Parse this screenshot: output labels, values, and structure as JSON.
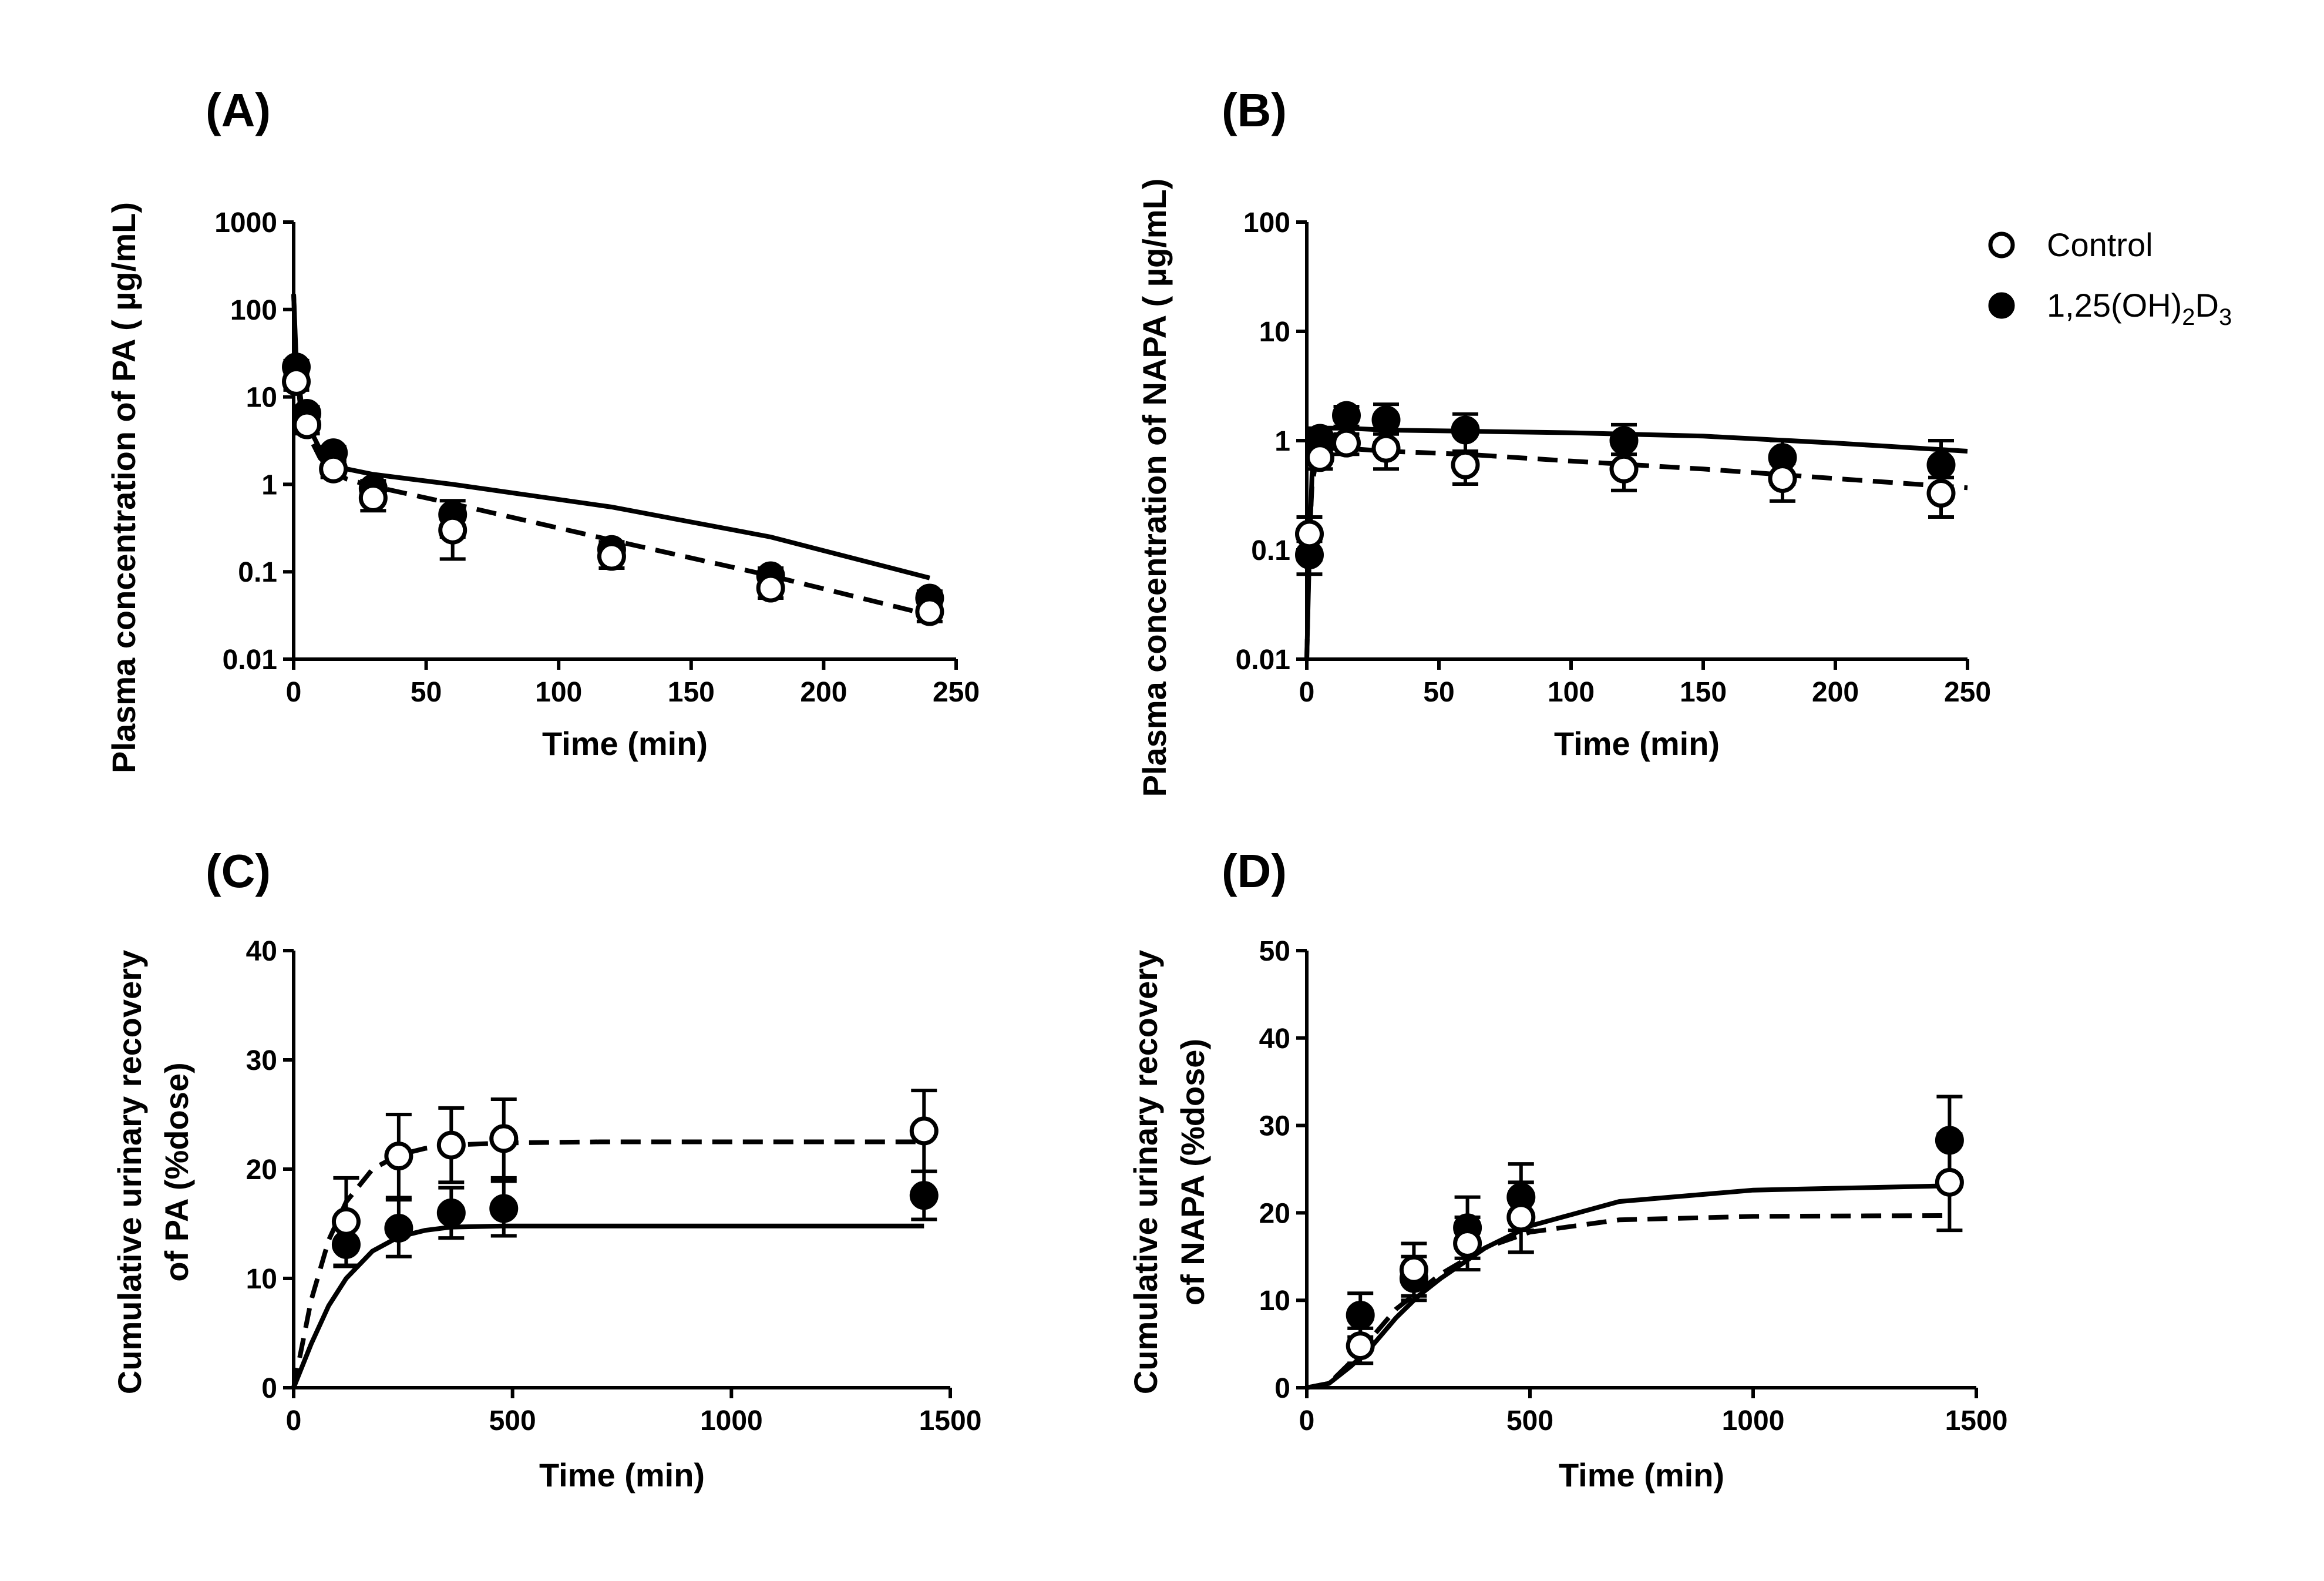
{
  "legend": {
    "items": [
      {
        "label": "Control",
        "marker": "open-circle"
      },
      {
        "label_parts": [
          "1,25(OH)",
          "2",
          "D",
          "3"
        ],
        "marker": "filled-circle"
      }
    ]
  },
  "chart_data": [
    {
      "panel": "(A)",
      "type": "scatter",
      "ylabel": "Plasma concentration of PA ( µg/mL)",
      "xlabel": "Time (min)",
      "yscale": "log",
      "xlim": [
        0,
        250
      ],
      "ylim": [
        0.01,
        1000
      ],
      "xticks": [
        0,
        50,
        100,
        150,
        200,
        250
      ],
      "yticks": [
        0.01,
        0.1,
        1,
        10,
        100,
        1000
      ],
      "ytick_labels": [
        "0.01",
        "0.1",
        "1",
        "10",
        "100",
        "1000"
      ],
      "series": [
        {
          "name": "Control",
          "marker": "open",
          "line": "dashed",
          "points": [
            [
              1,
              15,
              3
            ],
            [
              5,
              4.8,
              1
            ],
            [
              15,
              1.5,
              0.3
            ],
            [
              30,
              0.7,
              0.2
            ],
            [
              60,
              0.3,
              0.16
            ],
            [
              120,
              0.15,
              0.04
            ],
            [
              180,
              0.065,
              0.015
            ],
            [
              240,
              0.035,
              0.008
            ]
          ],
          "curve": [
            [
              0,
              150
            ],
            [
              1,
              20
            ],
            [
              3,
              6
            ],
            [
              5,
              4
            ],
            [
              10,
              2
            ],
            [
              15,
              1.4
            ],
            [
              20,
              1.15
            ],
            [
              30,
              0.95
            ],
            [
              60,
              0.6
            ],
            [
              120,
              0.23
            ],
            [
              180,
              0.09
            ],
            [
              240,
              0.032
            ]
          ]
        },
        {
          "name": "1,25(OH)2D3",
          "marker": "filled",
          "line": "solid",
          "points": [
            [
              1,
              22,
              4
            ],
            [
              5,
              6.5,
              1.2
            ],
            [
              15,
              2.3,
              0.4
            ],
            [
              30,
              0.9,
              0.2
            ],
            [
              60,
              0.45,
              0.2
            ],
            [
              120,
              0.18,
              0.04
            ],
            [
              180,
              0.09,
              0.02
            ],
            [
              240,
              0.05,
              0.01
            ]
          ],
          "curve": [
            [
              0,
              150
            ],
            [
              1,
              25
            ],
            [
              3,
              8
            ],
            [
              5,
              5
            ],
            [
              10,
              2.5
            ],
            [
              15,
              1.8
            ],
            [
              20,
              1.5
            ],
            [
              30,
              1.3
            ],
            [
              60,
              1.0
            ],
            [
              120,
              0.55
            ],
            [
              180,
              0.25
            ],
            [
              240,
              0.085
            ]
          ]
        }
      ]
    },
    {
      "panel": "(B)",
      "type": "scatter",
      "ylabel": "Plasma concentration of NAPA ( µg/mL)",
      "xlabel": "Time (min)",
      "yscale": "log",
      "xlim": [
        0,
        250
      ],
      "ylim": [
        0.01,
        100
      ],
      "xticks": [
        0,
        50,
        100,
        150,
        200,
        250
      ],
      "yticks": [
        0.01,
        0.1,
        1,
        10,
        100
      ],
      "ytick_labels": [
        "0.01",
        "0.1",
        "1",
        "10",
        "100"
      ],
      "series": [
        {
          "name": "Control",
          "marker": "open",
          "line": "dashed",
          "points": [
            [
              1,
              0.14,
              0.06
            ],
            [
              5,
              0.7,
              0.15
            ],
            [
              15,
              0.95,
              0.2
            ],
            [
              30,
              0.85,
              0.3
            ],
            [
              60,
              0.6,
              0.2
            ],
            [
              120,
              0.55,
              0.2
            ],
            [
              180,
              0.45,
              0.17
            ],
            [
              240,
              0.33,
              0.13
            ]
          ],
          "curve": [
            [
              0,
              0.01
            ],
            [
              1,
              0.12
            ],
            [
              2,
              0.4
            ],
            [
              4,
              0.75
            ],
            [
              8,
              0.85
            ],
            [
              15,
              0.85
            ],
            [
              30,
              0.8
            ],
            [
              60,
              0.75
            ],
            [
              100,
              0.65
            ],
            [
              150,
              0.55
            ],
            [
              200,
              0.45
            ],
            [
              250,
              0.37
            ]
          ]
        },
        {
          "name": "1,25(OH)2D3",
          "marker": "filled",
          "line": "solid",
          "points": [
            [
              1,
              0.09,
              0.03
            ],
            [
              5,
              1.05,
              0.25
            ],
            [
              15,
              1.7,
              0.35
            ],
            [
              30,
              1.55,
              0.6
            ],
            [
              60,
              1.25,
              0.5
            ],
            [
              120,
              1.0,
              0.4
            ],
            [
              180,
              0.7,
              0.3
            ],
            [
              240,
              0.6,
              0.4
            ]
          ],
          "curve": [
            [
              0,
              0.01
            ],
            [
              1,
              0.1
            ],
            [
              2,
              0.5
            ],
            [
              4,
              1.1
            ],
            [
              8,
              1.3
            ],
            [
              15,
              1.3
            ],
            [
              30,
              1.25
            ],
            [
              60,
              1.22
            ],
            [
              100,
              1.18
            ],
            [
              150,
              1.1
            ],
            [
              200,
              0.95
            ],
            [
              250,
              0.8
            ]
          ]
        }
      ]
    },
    {
      "panel": "(C)",
      "type": "scatter",
      "ylabel": "Cumulative urinary recovery",
      "ylabel2": "of PA (%dose)",
      "xlabel": "Time (min)",
      "yscale": "linear",
      "xlim": [
        0,
        1500
      ],
      "ylim": [
        0,
        40
      ],
      "xticks": [
        0,
        500,
        1000,
        1500
      ],
      "yticks": [
        0,
        10,
        20,
        30,
        40
      ],
      "ytick_labels": [
        "0",
        "10",
        "20",
        "30",
        "40"
      ],
      "series": [
        {
          "name": "Control",
          "marker": "open",
          "line": "dashed",
          "points": [
            [
              120,
              15.2,
              4
            ],
            [
              240,
              21.2,
              3.8
            ],
            [
              360,
              22.2,
              3.4
            ],
            [
              480,
              22.8,
              3.6
            ],
            [
              1440,
              23.5,
              3.7
            ]
          ],
          "curve": [
            [
              0,
              0
            ],
            [
              40,
              8
            ],
            [
              80,
              13.5
            ],
            [
              120,
              17
            ],
            [
              180,
              20
            ],
            [
              240,
              21.3
            ],
            [
              300,
              21.9
            ],
            [
              360,
              22.2
            ],
            [
              480,
              22.4
            ],
            [
              700,
              22.5
            ],
            [
              1000,
              22.5
            ],
            [
              1440,
              22.5
            ]
          ]
        },
        {
          "name": "1,25(OH)2D3",
          "marker": "filled",
          "line": "solid",
          "points": [
            [
              120,
              13.1,
              2
            ],
            [
              240,
              14.6,
              2.6
            ],
            [
              360,
              16,
              2.3
            ],
            [
              480,
              16.4,
              2.5
            ],
            [
              1440,
              17.6,
              2.2
            ]
          ],
          "curve": [
            [
              0,
              0
            ],
            [
              40,
              4
            ],
            [
              80,
              7.5
            ],
            [
              120,
              10
            ],
            [
              180,
              12.5
            ],
            [
              240,
              13.8
            ],
            [
              300,
              14.4
            ],
            [
              360,
              14.7
            ],
            [
              480,
              14.8
            ],
            [
              700,
              14.8
            ],
            [
              1000,
              14.8
            ],
            [
              1440,
              14.8
            ]
          ]
        }
      ]
    },
    {
      "panel": "(D)",
      "type": "scatter",
      "ylabel": "Cumulative urinary recovery",
      "ylabel2": "of NAPA (%dose)",
      "xlabel": "Time (min)",
      "yscale": "linear",
      "xlim": [
        0,
        1500
      ],
      "ylim": [
        0,
        50
      ],
      "xticks": [
        0,
        500,
        1000,
        1500
      ],
      "yticks": [
        0,
        10,
        20,
        30,
        40,
        50
      ],
      "ytick_labels": [
        "0",
        "10",
        "20",
        "30",
        "40",
        "50"
      ],
      "series": [
        {
          "name": "Control",
          "marker": "open",
          "line": "dashed",
          "points": [
            [
              120,
              4.8,
              2
            ],
            [
              240,
              13.5,
              3
            ],
            [
              360,
              16.5,
              3
            ],
            [
              480,
              19.5,
              4
            ],
            [
              1440,
              23.5,
              5.5
            ]
          ],
          "curve": [
            [
              0,
              0
            ],
            [
              50,
              0.5
            ],
            [
              100,
              3
            ],
            [
              150,
              6
            ],
            [
              200,
              9
            ],
            [
              250,
              11
            ],
            [
              300,
              13
            ],
            [
              400,
              16
            ],
            [
              500,
              17.8
            ],
            [
              700,
              19.2
            ],
            [
              1000,
              19.6
            ],
            [
              1440,
              19.7
            ]
          ]
        },
        {
          "name": "1,25(OH)2D3",
          "marker": "filled",
          "line": "solid",
          "points": [
            [
              120,
              8.3,
              2.5
            ],
            [
              240,
              12.5,
              2.5
            ],
            [
              360,
              18.3,
              3.5
            ],
            [
              480,
              21.8,
              3.8
            ],
            [
              1440,
              28.3,
              5
            ]
          ],
          "curve": [
            [
              0,
              0
            ],
            [
              50,
              0.5
            ],
            [
              100,
              2.5
            ],
            [
              150,
              5
            ],
            [
              200,
              8
            ],
            [
              250,
              10.5
            ],
            [
              300,
              12.5
            ],
            [
              400,
              16
            ],
            [
              500,
              18.5
            ],
            [
              700,
              21.3
            ],
            [
              1000,
              22.6
            ],
            [
              1440,
              23.1
            ]
          ]
        }
      ]
    }
  ]
}
